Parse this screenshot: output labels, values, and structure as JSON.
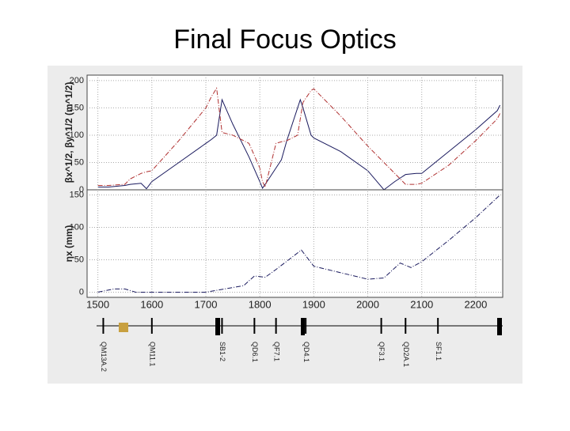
{
  "title": "Final Focus Optics",
  "chart_data": [
    {
      "type": "line",
      "ylabel": "βx^1/2, βy^1/2 (m^1/2)",
      "x": [
        1500,
        1520,
        1550,
        1560,
        1580,
        1590,
        1600,
        1650,
        1700,
        1710,
        1720,
        1730,
        1750,
        1760,
        1780,
        1800,
        1805,
        1810,
        1830,
        1840,
        1850,
        1870,
        1875,
        1880,
        1895,
        1900,
        1950,
        2000,
        2030,
        2050,
        2070,
        2090,
        2100,
        2150,
        2200,
        2240,
        2245
      ],
      "series": [
        {
          "name": "βx^1/2",
          "color": "#1a1a5e",
          "dash": false,
          "values": [
            5,
            5,
            8,
            10,
            12,
            2,
            15,
            50,
            85,
            92,
            100,
            165,
            120,
            100,
            60,
            15,
            3,
            10,
            40,
            55,
            90,
            150,
            165,
            150,
            100,
            95,
            70,
            35,
            0,
            15,
            28,
            30,
            30,
            70,
            110,
            145,
            155
          ]
        },
        {
          "name": "βy^1/2",
          "color": "#b03030",
          "dash": true,
          "values": [
            8,
            8,
            10,
            20,
            30,
            33,
            35,
            90,
            150,
            170,
            186,
            105,
            100,
            95,
            85,
            40,
            15,
            5,
            85,
            88,
            90,
            100,
            130,
            160,
            182,
            185,
            135,
            80,
            50,
            30,
            10,
            10,
            12,
            45,
            90,
            130,
            140
          ]
        }
      ],
      "ylim": [
        0,
        210
      ],
      "yticks": [
        0,
        50,
        100,
        150,
        200
      ],
      "xlim": [
        1480,
        2250
      ],
      "grid": true
    },
    {
      "type": "line",
      "ylabel": "ηx (mm)",
      "x": [
        1500,
        1530,
        1550,
        1570,
        1700,
        1770,
        1790,
        1810,
        1830,
        1877,
        1900,
        1950,
        2000,
        2030,
        2060,
        2080,
        2100,
        2150,
        2200,
        2245
      ],
      "series": [
        {
          "name": "ηx",
          "color": "#1a1a5e",
          "dash": true,
          "values": [
            0,
            5,
            5,
            0,
            0,
            10,
            25,
            23,
            35,
            65,
            40,
            30,
            20,
            22,
            45,
            38,
            47,
            80,
            115,
            150
          ]
        }
      ],
      "ylim": [
        -8,
        158
      ],
      "yticks": [
        0,
        50,
        100,
        150
      ],
      "xlim": [
        1480,
        2250
      ],
      "xticks": [
        1500,
        1600,
        1700,
        1800,
        1900,
        2000,
        2100,
        2200
      ],
      "grid": true,
      "element_labels": [
        "QM13A.2",
        "QM11.1",
        "SB1-2",
        "QD6.1",
        "QF7.1",
        "QD4.1",
        "QF3.1",
        "QD2A.1",
        "SF1.1"
      ],
      "element_s": [
        1510,
        1600,
        1730,
        1790,
        1830,
        1885,
        2025,
        2070,
        2130,
        2245
      ]
    }
  ]
}
